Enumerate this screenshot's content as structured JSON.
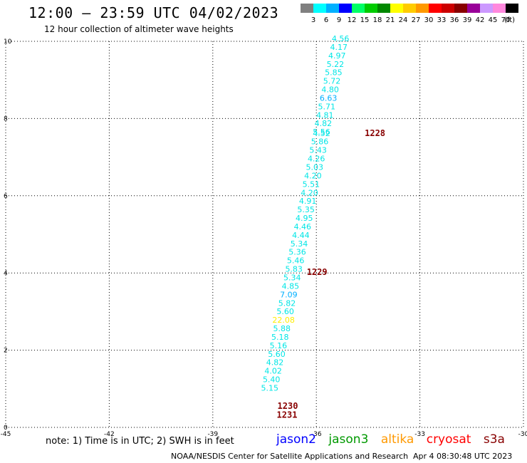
{
  "header": {
    "title": "12:00 – 23:59 UTC 04/02/2023",
    "subtitle": "12 hour collection of altimeter wave heights"
  },
  "colorbar": {
    "unit": "(ft)",
    "labels": [
      "3",
      "6",
      "9",
      "12",
      "15",
      "18",
      "21",
      "24",
      "27",
      "30",
      "33",
      "36",
      "39",
      "42",
      "45",
      "70"
    ],
    "colors": [
      "#808080",
      "#00ffff",
      "#00b0ff",
      "#0000ff",
      "#00ff66",
      "#00cc00",
      "#008800",
      "#ffff00",
      "#ffcc00",
      "#ff9900",
      "#ff0000",
      "#cc0000",
      "#880000",
      "#990099",
      "#cc99ff",
      "#ff88dd",
      "#000000"
    ]
  },
  "chart_data": {
    "type": "scatter",
    "xlim": [
      -45,
      -30
    ],
    "ylim": [
      0,
      10
    ],
    "xticks": [
      "-45",
      "-42",
      "-39",
      "-36",
      "-33",
      "-30"
    ],
    "yticks": [
      "0",
      "2",
      "4",
      "6",
      "8",
      "10"
    ],
    "grid": true,
    "points": [
      {
        "x": -35.3,
        "y": 10.0,
        "label": "4.56",
        "color": "#00e6e6"
      },
      {
        "x": -35.35,
        "y": 9.78,
        "label": "4.17",
        "color": "#00e6e6"
      },
      {
        "x": -35.4,
        "y": 9.56,
        "label": "4.97",
        "color": "#00e6e6"
      },
      {
        "x": -35.45,
        "y": 9.34,
        "label": "5.22",
        "color": "#00e6e6"
      },
      {
        "x": -35.5,
        "y": 9.12,
        "label": "5.85",
        "color": "#00e6e6"
      },
      {
        "x": -35.55,
        "y": 8.9,
        "label": "5.72",
        "color": "#00e6e6"
      },
      {
        "x": -35.6,
        "y": 8.68,
        "label": "4.80",
        "color": "#00e6e6"
      },
      {
        "x": -35.65,
        "y": 8.46,
        "label": "6.63",
        "color": "#00b0ff"
      },
      {
        "x": -35.7,
        "y": 8.24,
        "label": "5.71",
        "color": "#00e6e6"
      },
      {
        "x": -35.75,
        "y": 8.02,
        "label": "4.81",
        "color": "#00e6e6"
      },
      {
        "x": -35.8,
        "y": 7.8,
        "label": "4.82",
        "color": "#00e6e6"
      },
      {
        "x": -35.85,
        "y": 7.58,
        "label": "5.56",
        "color": "#00e6e6"
      },
      {
        "x": -35.85,
        "y": 7.55,
        "label": "4.52",
        "color": "#00e6e6"
      },
      {
        "x": -35.9,
        "y": 7.33,
        "label": "5.86",
        "color": "#00e6e6"
      },
      {
        "x": -35.95,
        "y": 7.11,
        "label": "5.43",
        "color": "#00e6e6"
      },
      {
        "x": -36.0,
        "y": 6.89,
        "label": "4.26",
        "color": "#00e6e6"
      },
      {
        "x": -36.05,
        "y": 6.67,
        "label": "5.03",
        "color": "#00e6e6"
      },
      {
        "x": -36.1,
        "y": 6.45,
        "label": "4.20",
        "color": "#00e6e6"
      },
      {
        "x": -36.15,
        "y": 6.23,
        "label": "5.51",
        "color": "#00e6e6"
      },
      {
        "x": -36.2,
        "y": 6.01,
        "label": "4.20",
        "color": "#00e6e6"
      },
      {
        "x": -36.25,
        "y": 5.79,
        "label": "4.91",
        "color": "#00e6e6"
      },
      {
        "x": -36.3,
        "y": 5.57,
        "label": "5.35",
        "color": "#00e6e6"
      },
      {
        "x": -36.35,
        "y": 5.35,
        "label": "4.95",
        "color": "#00e6e6"
      },
      {
        "x": -36.4,
        "y": 5.13,
        "label": "4.46",
        "color": "#00e6e6"
      },
      {
        "x": -36.45,
        "y": 4.91,
        "label": "4.44",
        "color": "#00e6e6"
      },
      {
        "x": -36.5,
        "y": 4.69,
        "label": "5.34",
        "color": "#00e6e6"
      },
      {
        "x": -36.55,
        "y": 4.47,
        "label": "5.36",
        "color": "#00e6e6"
      },
      {
        "x": -36.6,
        "y": 4.25,
        "label": "5.46",
        "color": "#00e6e6"
      },
      {
        "x": -36.65,
        "y": 4.03,
        "label": "5.83",
        "color": "#00e6e6"
      },
      {
        "x": -36.7,
        "y": 3.81,
        "label": "5.34",
        "color": "#00e6e6"
      },
      {
        "x": -36.75,
        "y": 3.59,
        "label": "4.85",
        "color": "#00e6e6"
      },
      {
        "x": -36.8,
        "y": 3.37,
        "label": "7.09",
        "color": "#00b0ff"
      },
      {
        "x": -36.85,
        "y": 3.15,
        "label": "5.82",
        "color": "#00e6e6"
      },
      {
        "x": -36.9,
        "y": 2.93,
        "label": "5.60",
        "color": "#00e6e6"
      },
      {
        "x": -36.95,
        "y": 2.71,
        "label": "22.08",
        "color": "#ffee00"
      },
      {
        "x": -37.0,
        "y": 2.49,
        "label": "5.88",
        "color": "#00e6e6"
      },
      {
        "x": -37.05,
        "y": 2.27,
        "label": "5.18",
        "color": "#00e6e6"
      },
      {
        "x": -37.1,
        "y": 2.05,
        "label": "5.16",
        "color": "#00e6e6"
      },
      {
        "x": -37.15,
        "y": 1.83,
        "label": "5.60",
        "color": "#00e6e6"
      },
      {
        "x": -37.2,
        "y": 1.61,
        "label": "4.82",
        "color": "#00e6e6"
      },
      {
        "x": -37.25,
        "y": 1.39,
        "label": "4.02",
        "color": "#00e6e6"
      },
      {
        "x": -37.3,
        "y": 1.17,
        "label": "5.40",
        "color": "#00e6e6"
      },
      {
        "x": -37.35,
        "y": 0.95,
        "label": "5.15",
        "color": "#00e6e6"
      }
    ],
    "time_labels": [
      {
        "x": -34.3,
        "y": 7.55,
        "label": "1228",
        "color": "#880000"
      },
      {
        "x": -35.98,
        "y": 3.95,
        "label": "1229",
        "color": "#880000"
      },
      {
        "x": -36.83,
        "y": 0.48,
        "label": "1230",
        "color": "#880000"
      },
      {
        "x": -36.85,
        "y": 0.25,
        "label": "1231",
        "color": "#880000"
      }
    ]
  },
  "footer": {
    "note": "note:  1) Time is in UTC; 2) SWH is in feet",
    "satellites": [
      {
        "name": "jason2",
        "color": "#0000ff"
      },
      {
        "name": "jason3",
        "color": "#009900"
      },
      {
        "name": "altika",
        "color": "#ff9900"
      },
      {
        "name": "cryosat",
        "color": "#ff0000"
      },
      {
        "name": "s3a",
        "color": "#880000"
      }
    ],
    "credit": "NOAA/NESDIS Center for Satellite Applications and Research",
    "timestamp": "Apr  4 08:30:48 UTC 2023"
  }
}
